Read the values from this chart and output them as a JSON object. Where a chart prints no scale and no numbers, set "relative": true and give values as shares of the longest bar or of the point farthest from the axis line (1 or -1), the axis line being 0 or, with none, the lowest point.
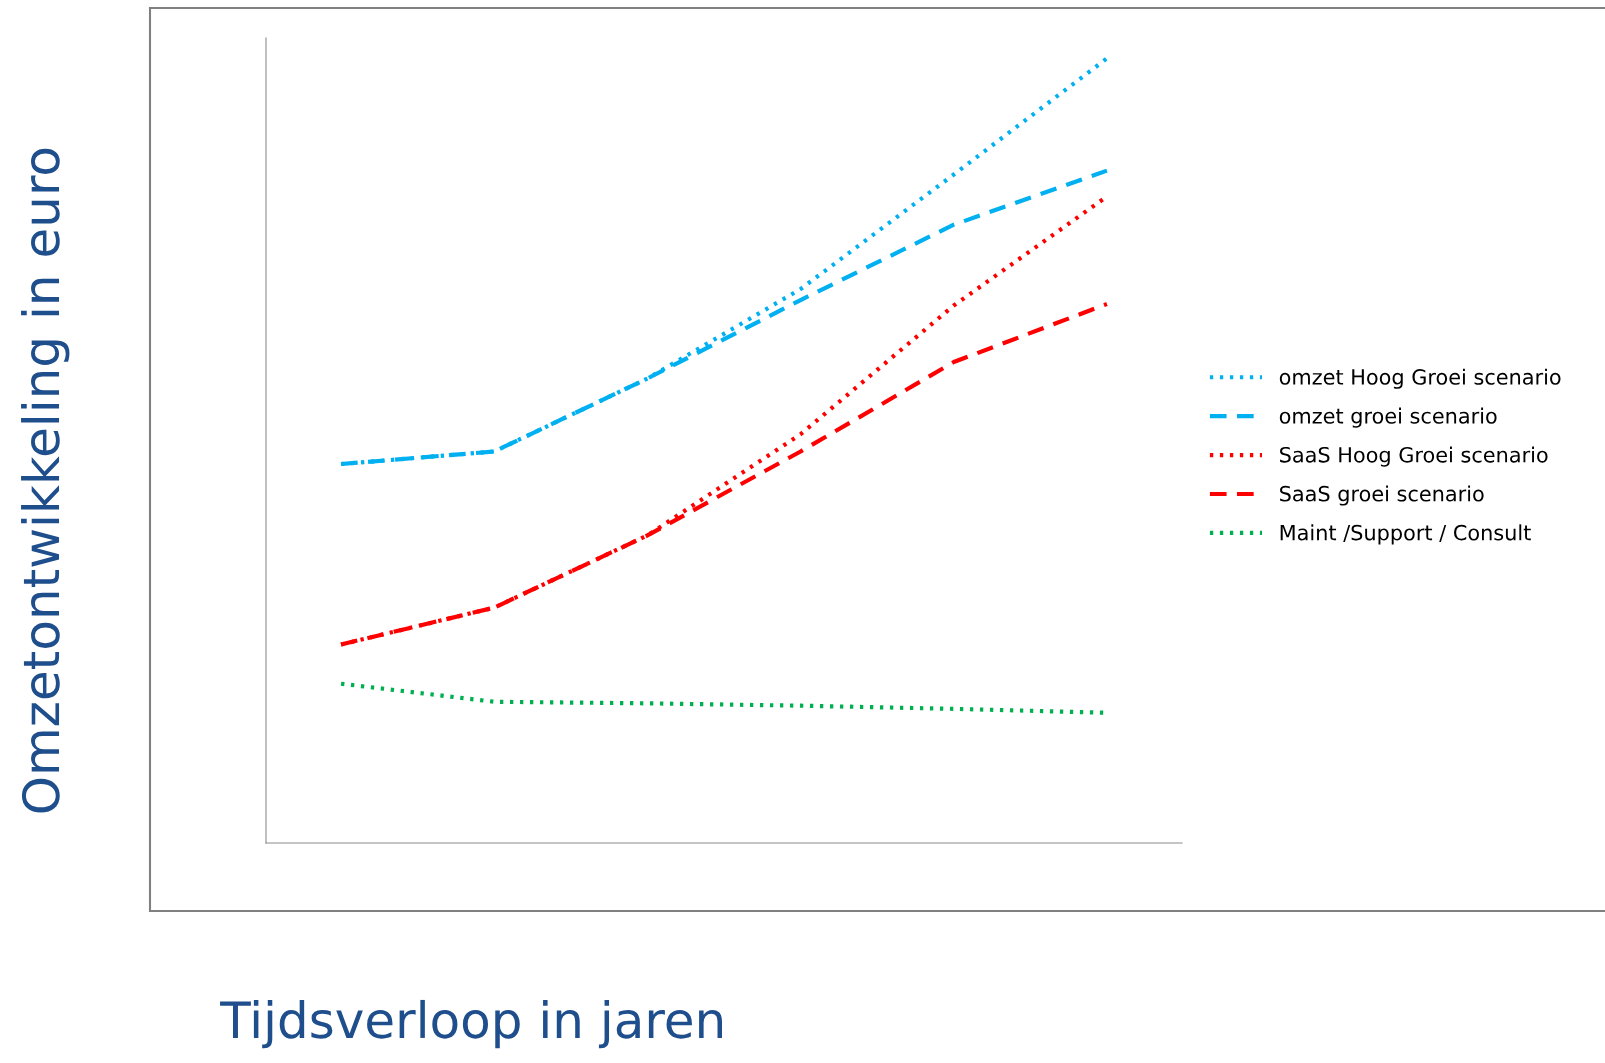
{
  "chart_data": {
    "type": "line",
    "xlabel": "Tijdsverloop in jaren",
    "ylabel": "Omzetontwikkeling in euro",
    "relative": true,
    "categories": [
      null,
      null,
      null,
      null,
      null,
      null
    ],
    "series": [
      {
        "name": "omzet Hoog Groei scenario",
        "color": "#00b0f0",
        "line_style": "dotted",
        "values": [
          0.483,
          0.499,
          0.592,
          0.706,
          0.852,
          1
        ]
      },
      {
        "name": "omzet groei scenario",
        "color": "#00b0f0",
        "line_style": "dashed",
        "values": [
          0.483,
          0.499,
          0.592,
          0.692,
          0.788,
          0.857
        ]
      },
      {
        "name": "SaaS Hoog Groei scenario",
        "color": "#ff0000",
        "line_style": "dotted",
        "values": [
          0.253,
          0.3,
          0.392,
          0.521,
          0.685,
          0.824
        ]
      },
      {
        "name": "SaaS groei scenario",
        "color": "#ff0000",
        "line_style": "dashed",
        "values": [
          0.253,
          0.3,
          0.392,
          0.499,
          0.613,
          0.687
        ]
      },
      {
        "name": "Maint /Support / Consult",
        "color": "#00b050",
        "line_style": "dotted",
        "values": [
          0.203,
          0.18,
          0.178,
          0.175,
          0.171,
          0.166
        ]
      }
    ],
    "legend": "right",
    "grid": false,
    "marker": "none"
  }
}
